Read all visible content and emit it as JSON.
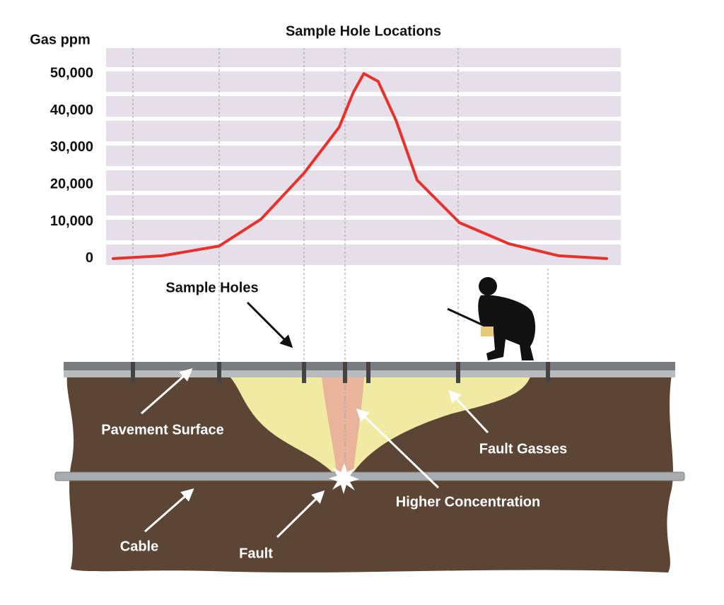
{
  "chart_data": {
    "type": "line",
    "title": "Sample Hole Locations",
    "y_label": "Gas ppm",
    "x": [
      0,
      10,
      21.5,
      30,
      38.7,
      45.8,
      48.7,
      50.8,
      53.7,
      57.3,
      61.6,
      70.2,
      80.2,
      90.3,
      100
    ],
    "values": [
      0,
      760,
      3400,
      10700,
      23100,
      35500,
      45000,
      50000,
      47900,
      37400,
      21200,
      9700,
      4000,
      760,
      0
    ],
    "color": "#e8312a",
    "xlim": [
      0,
      100
    ],
    "ylim": [
      -2700,
      56900
    ],
    "yticks": [
      0,
      {
        "value": 10000,
        "label": "10,000"
      },
      {
        "value": 20000,
        "label": "20,000"
      },
      {
        "value": 30000,
        "label": "30,000"
      },
      {
        "value": 40000,
        "label": "40,000"
      },
      {
        "value": 50000,
        "label": "50,000"
      }
    ]
  },
  "diagram": {
    "labels": [
      "Sample Holes",
      "Pavement Surface",
      "Fault Gasses",
      "Higher Concentration",
      "Cable",
      "Fault"
    ]
  }
}
